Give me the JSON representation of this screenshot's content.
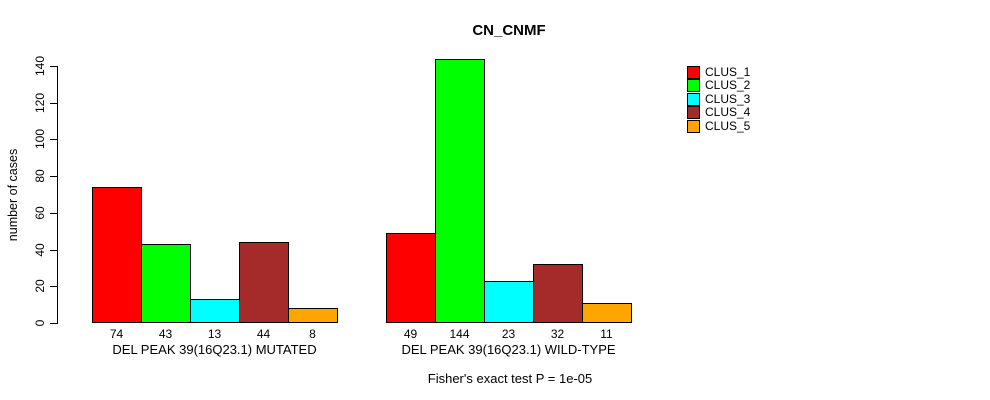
{
  "chart_data": {
    "type": "bar",
    "title": "CN_CNMF",
    "ylabel": "number of cases",
    "xlabel": "",
    "annotation": "Fisher's exact test P = 1e-05",
    "ylim": [
      0,
      140
    ],
    "yticks": [
      0,
      20,
      40,
      60,
      80,
      100,
      120,
      140
    ],
    "grid": false,
    "legend_position": "right",
    "bar_value_labels": true,
    "categories": [
      "DEL PEAK 39(16Q23.1) MUTATED",
      "DEL PEAK 39(16Q23.1) WILD-TYPE"
    ],
    "series": [
      {
        "name": "CLUS_1",
        "color": "#FF0000",
        "values": [
          74,
          49
        ]
      },
      {
        "name": "CLUS_2",
        "color": "#00FF00",
        "values": [
          43,
          144
        ]
      },
      {
        "name": "CLUS_3",
        "color": "#00FFFF",
        "values": [
          13,
          23
        ]
      },
      {
        "name": "CLUS_4",
        "color": "#A52A2A",
        "values": [
          44,
          32
        ]
      },
      {
        "name": "CLUS_5",
        "color": "#FFA500",
        "values": [
          8,
          11
        ]
      }
    ]
  }
}
